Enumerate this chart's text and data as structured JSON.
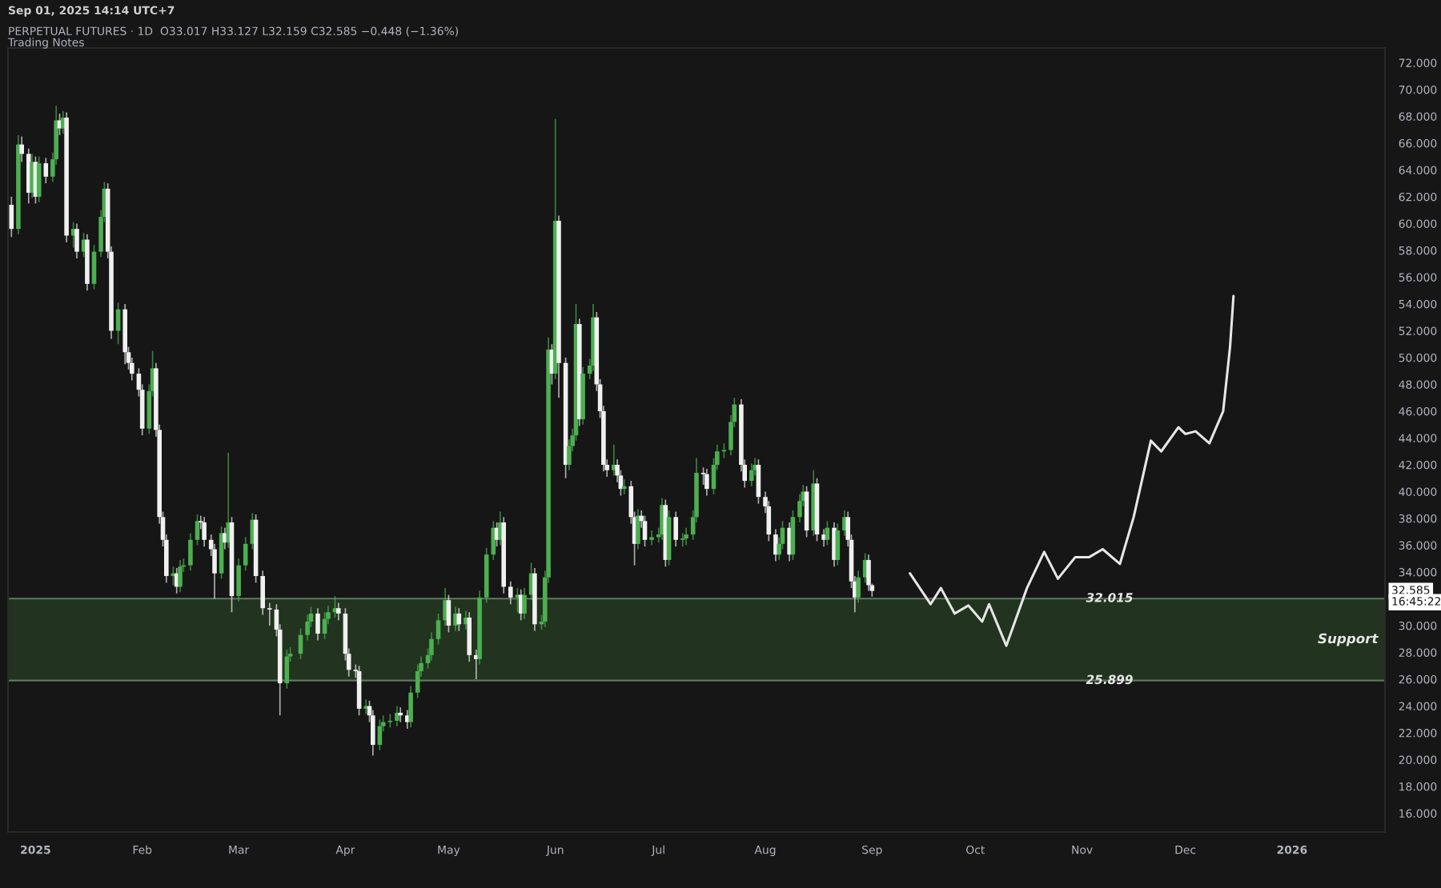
{
  "chart_data": {
    "type": "candlestick",
    "title": "PERPETUAL FUTURES · 1D  O33.017 H33.127 L32.159 C32.585 −0.448 (−1.36%)",
    "subtitle": "Trading Notes",
    "annotations": [
      "Sep 01, 2025 14:14 UTC+7",
      "32.585",
      "16:45:22"
    ],
    "colors": [
      "#f0f0f0",
      "#4caf50",
      "#f0f0f0",
      "#f0f0f0",
      "#4caf50",
      "#f0f0f0",
      "#4caf50",
      "#f0f0f0",
      "#4caf50",
      "#4caf50",
      "#f0f0f0",
      "#4caf50",
      "#f0f0f0",
      "#4caf50",
      "#f0f0f0",
      "#4caf50",
      "#f0f0f0",
      "#4caf50",
      "#4caf50",
      "#4caf50",
      "#f0f0f0",
      "#f0f0f0",
      "#4caf50",
      "#f0f0f0",
      "#f0f0f0",
      "#f0f0f0",
      "#f0f0f0",
      "#f0f0f0",
      "#4caf50",
      "#4caf50",
      "#f0f0f0",
      "#f0f0f0",
      "#f0f0f0",
      "#f0f0f0",
      "#4caf50",
      "#f0f0f0",
      "#4caf50",
      "#4caf50",
      "#4caf50",
      "#4caf50",
      "#f0f0f0",
      "#f0f0f0",
      "#f0f0f0",
      "#f0f0f0",
      "#4caf50",
      "#f0f0f0",
      "#4caf50",
      "#f0f0f0",
      "#4caf50",
      "#4caf50",
      "#4caf50",
      "#f0f0f0",
      "#f0f0f0",
      "#f0f0f0",
      "#f0f0f0",
      "#f0f0f0",
      "#4caf50",
      "#4caf50",
      "#4caf50",
      "#4caf50",
      "#4caf50",
      "#f0f0f0",
      "#4caf50",
      "#4caf50",
      "#4caf50",
      "#f0f0f0",
      "#f0f0f0",
      "#f0f0f0",
      "#f0f0f0",
      "#f0f0f0",
      "#4caf50",
      "#f0f0f0",
      "#f0f0f0",
      "#4caf50",
      "#4caf50",
      "#4caf50",
      "#4caf50",
      "#f0f0f0",
      "#f0f0f0",
      "#4caf50",
      "#4caf50",
      "#4caf50",
      "#4caf50",
      "#4caf50",
      "#4caf50",
      "#4caf50",
      "#f0f0f0",
      "#4caf50",
      "#f0f0f0",
      "#4caf50",
      "#f0f0f0",
      "#f0f0f0",
      "#4caf50",
      "#4caf50",
      "#4caf50",
      "#f0f0f0",
      "#4caf50",
      "#f0f0f0",
      "#f0f0f0",
      "#4caf50",
      "#f0f0f0",
      "#4caf50",
      "#4caf50",
      "#f0f0f0",
      "#4caf50",
      "#4caf50",
      "#4caf50",
      "#f0f0f0",
      "#4caf50",
      "#f0f0f0",
      "#f0f0f0",
      "#4caf50",
      "#4caf50",
      "#4caf50",
      "#f0f0f0",
      "#4caf50",
      "#4caf50",
      "#4caf50",
      "#f0f0f0",
      "#f0f0f0",
      "#f0f0f0",
      "#f0f0f0",
      "#4caf50",
      "#f0f0f0",
      "#f0f0f0",
      "#4caf50",
      "#f0f0f0",
      "#f0f0f0",
      "#4caf50",
      "#f0f0f0",
      "#f0f0f0",
      "#4caf50",
      "#4caf50",
      "#4caf50",
      "#f0f0f0",
      "#4caf50",
      "#f0f0f0",
      "#4caf50",
      "#4caf50",
      "#4caf50",
      "#4caf50",
      "#f0f0f0",
      "#f0f0f0",
      "#4caf50",
      "#4caf50",
      "#4caf50",
      "#4caf50",
      "#4caf50",
      "#f0f0f0",
      "#f0f0f0",
      "#4caf50",
      "#4caf50",
      "#f0f0f0",
      "#f0f0f0",
      "#f0f0f0",
      "#f0f0f0",
      "#4caf50",
      "#4caf50",
      "#f0f0f0",
      "#4caf50",
      "#4caf50",
      "#4caf50",
      "#f0f0f0",
      "#4caf50",
      "#f0f0f0",
      "#f0f0f0",
      "#4caf50",
      "#f0f0f0",
      "#4caf50",
      "#4caf50",
      "#f0f0f0",
      "#f0f0f0",
      "#f0f0f0",
      "#4caf50",
      "#4caf50",
      "#f0f0f0",
      "#f0f0f0"
    ],
    "x": [
      "2024-12-25",
      "2024-12-27",
      "2024-12-28",
      "2024-12-30",
      "2024-12-31",
      "2025-01-01",
      "2025-01-02",
      "2025-01-04",
      "2025-01-06",
      "2025-01-07",
      "2025-01-08",
      "2025-01-09",
      "2025-01-10",
      "2025-01-12",
      "2025-01-13",
      "2025-01-15",
      "2025-01-16",
      "2025-01-18",
      "2025-01-20",
      "2025-01-21",
      "2025-01-22",
      "2025-01-23",
      "2025-01-25",
      "2025-01-27",
      "2025-01-28",
      "2025-01-29",
      "2025-01-31",
      "2025-02-01",
      "2025-02-03",
      "2025-02-04",
      "2025-02-05",
      "2025-02-06",
      "2025-02-07",
      "2025-02-08",
      "2025-02-10",
      "2025-02-11",
      "2025-02-12",
      "2025-02-13",
      "2025-02-15",
      "2025-02-17",
      "2025-02-18",
      "2025-02-19",
      "2025-02-21",
      "2025-02-22",
      "2025-02-24",
      "2025-02-25",
      "2025-02-26",
      "2025-02-27",
      "2025-03-01",
      "2025-03-03",
      "2025-03-05",
      "2025-03-06",
      "2025-03-08",
      "2025-03-10",
      "2025-03-12",
      "2025-03-13",
      "2025-03-15",
      "2025-03-16",
      "2025-03-19",
      "2025-03-21",
      "2025-03-22",
      "2025-03-24",
      "2025-03-26",
      "2025-03-27",
      "2025-03-29",
      "2025-03-30",
      "2025-04-01",
      "2025-04-02",
      "2025-04-04",
      "2025-04-05",
      "2025-04-07",
      "2025-04-08",
      "2025-04-09",
      "2025-04-11",
      "2025-04-12",
      "2025-04-14",
      "2025-04-16",
      "2025-04-17",
      "2025-04-19",
      "2025-04-20",
      "2025-04-22",
      "2025-04-23",
      "2025-04-25",
      "2025-04-26",
      "2025-04-28",
      "2025-04-30",
      "2025-05-01",
      "2025-05-03",
      "2025-05-04",
      "2025-05-06",
      "2025-05-07",
      "2025-05-09",
      "2025-05-10",
      "2025-05-12",
      "2025-05-14",
      "2025-05-15",
      "2025-05-16",
      "2025-05-17",
      "2025-05-19",
      "2025-05-21",
      "2025-05-22",
      "2025-05-23",
      "2025-05-25",
      "2025-05-26",
      "2025-05-28",
      "2025-05-29",
      "2025-05-30",
      "2025-05-31",
      "2025-06-01",
      "2025-06-02",
      "2025-06-04",
      "2025-06-05",
      "2025-06-06",
      "2025-06-07",
      "2025-06-08",
      "2025-06-09",
      "2025-06-11",
      "2025-06-12",
      "2025-06-13",
      "2025-06-14",
      "2025-06-15",
      "2025-06-16",
      "2025-06-18",
      "2025-06-19",
      "2025-06-20",
      "2025-06-21",
      "2025-06-23",
      "2025-06-24",
      "2025-06-25",
      "2025-06-26",
      "2025-06-27",
      "2025-06-29",
      "2025-07-01",
      "2025-07-02",
      "2025-07-03",
      "2025-07-04",
      "2025-07-06",
      "2025-07-08",
      "2025-07-09",
      "2025-07-11",
      "2025-07-12",
      "2025-07-14",
      "2025-07-15",
      "2025-07-17",
      "2025-07-18",
      "2025-07-20",
      "2025-07-22",
      "2025-07-23",
      "2025-07-25",
      "2025-07-26",
      "2025-07-28",
      "2025-07-29",
      "2025-07-30",
      "2025-08-01",
      "2025-08-02",
      "2025-08-04",
      "2025-08-05",
      "2025-08-06",
      "2025-08-08",
      "2025-08-09",
      "2025-08-11",
      "2025-08-12",
      "2025-08-13",
      "2025-08-15",
      "2025-08-16",
      "2025-08-18",
      "2025-08-19",
      "2025-08-21",
      "2025-08-22",
      "2025-08-24",
      "2025-08-25",
      "2025-08-26",
      "2025-08-27",
      "2025-08-28",
      "2025-08-30",
      "2025-08-31",
      "2025-09-01"
    ],
    "ohlc": [
      [
        61.4,
        62.0,
        59.0,
        59.6
      ],
      [
        59.6,
        66.6,
        59.2,
        65.9
      ],
      [
        65.9,
        66.5,
        64.6,
        65.2
      ],
      [
        65.2,
        65.6,
        61.5,
        62.3
      ],
      [
        62.3,
        65.2,
        61.9,
        64.6
      ],
      [
        64.6,
        65.0,
        61.5,
        62.0
      ],
      [
        62.0,
        65.0,
        61.6,
        64.5
      ],
      [
        64.5,
        64.9,
        63.0,
        63.5
      ],
      [
        63.5,
        65.3,
        63.1,
        64.8
      ],
      [
        64.8,
        68.8,
        64.4,
        67.7
      ],
      [
        67.7,
        68.2,
        66.6,
        67.1
      ],
      [
        67.1,
        68.4,
        66.7,
        67.9
      ],
      [
        67.9,
        68.3,
        58.6,
        59.1
      ],
      [
        59.1,
        60.1,
        58.2,
        59.6
      ],
      [
        59.6,
        60.0,
        57.4,
        57.9
      ],
      [
        57.9,
        59.3,
        57.5,
        58.8
      ],
      [
        58.8,
        59.2,
        55.0,
        55.5
      ],
      [
        55.5,
        58.4,
        55.1,
        57.9
      ],
      [
        57.9,
        61.0,
        57.5,
        60.5
      ],
      [
        60.5,
        63.1,
        60.1,
        62.6
      ],
      [
        62.6,
        63.0,
        57.4,
        57.9
      ],
      [
        57.9,
        58.3,
        51.4,
        52.0
      ],
      [
        52.0,
        54.1,
        51.0,
        53.6
      ],
      [
        53.6,
        54.0,
        49.5,
        50.4
      ],
      [
        50.4,
        50.8,
        49.1,
        49.6
      ],
      [
        49.6,
        50.0,
        48.3,
        48.8
      ],
      [
        48.8,
        49.2,
        47.1,
        47.6
      ],
      [
        47.6,
        48.0,
        44.2,
        44.7
      ],
      [
        44.7,
        48.0,
        44.3,
        47.5
      ],
      [
        47.5,
        50.5,
        47.1,
        49.2
      ],
      [
        49.2,
        49.6,
        44.1,
        44.6
      ],
      [
        44.6,
        45.0,
        37.6,
        38.1
      ],
      [
        38.1,
        38.5,
        35.9,
        36.4
      ],
      [
        36.4,
        36.8,
        33.2,
        33.7
      ],
      [
        33.7,
        34.4,
        33.0,
        33.9
      ],
      [
        33.9,
        34.3,
        32.4,
        32.9
      ],
      [
        32.9,
        34.9,
        32.5,
        34.4
      ],
      [
        34.4,
        35.0,
        34.0,
        34.5
      ],
      [
        34.5,
        36.9,
        34.1,
        36.4
      ],
      [
        36.4,
        38.3,
        36.0,
        37.8
      ],
      [
        37.8,
        38.2,
        37.2,
        37.7
      ],
      [
        37.7,
        38.1,
        35.9,
        36.4
      ],
      [
        36.4,
        36.8,
        35.2,
        35.7
      ],
      [
        35.7,
        36.1,
        32.0,
        33.9
      ],
      [
        33.9,
        37.4,
        33.5,
        36.9
      ],
      [
        36.9,
        37.3,
        35.7,
        36.2
      ],
      [
        36.2,
        42.9,
        35.8,
        37.7
      ],
      [
        37.7,
        38.1,
        31.0,
        32.2
      ],
      [
        32.2,
        35.0,
        31.8,
        34.5
      ],
      [
        34.5,
        36.6,
        34.1,
        36.1
      ],
      [
        36.1,
        38.4,
        35.7,
        37.9
      ],
      [
        37.9,
        38.3,
        33.2,
        33.7
      ],
      [
        33.7,
        34.1,
        30.8,
        31.3
      ],
      [
        31.3,
        31.7,
        30.0,
        31.2
      ],
      [
        31.2,
        31.6,
        29.2,
        29.7
      ],
      [
        29.7,
        30.1,
        23.3,
        25.7
      ],
      [
        25.7,
        28.2,
        25.3,
        27.7
      ],
      [
        27.7,
        28.4,
        27.3,
        27.9
      ],
      [
        27.9,
        29.8,
        27.5,
        29.3
      ],
      [
        29.3,
        30.8,
        28.9,
        30.3
      ],
      [
        30.3,
        31.4,
        29.9,
        30.9
      ],
      [
        30.9,
        31.3,
        28.9,
        29.4
      ],
      [
        29.4,
        31.0,
        29.0,
        30.5
      ],
      [
        30.5,
        31.5,
        30.1,
        31.0
      ],
      [
        31.0,
        32.2,
        30.6,
        31.3
      ],
      [
        31.3,
        31.7,
        30.4,
        30.9
      ],
      [
        30.9,
        31.3,
        27.4,
        27.9
      ],
      [
        27.9,
        28.3,
        26.2,
        26.7
      ],
      [
        26.7,
        27.1,
        26.1,
        26.6
      ],
      [
        26.6,
        27.0,
        23.3,
        23.8
      ],
      [
        23.8,
        24.5,
        23.4,
        24.0
      ],
      [
        24.0,
        24.4,
        22.8,
        23.3
      ],
      [
        23.3,
        23.7,
        20.3,
        21.1
      ],
      [
        21.1,
        23.0,
        20.7,
        22.5
      ],
      [
        22.5,
        23.3,
        22.1,
        22.8
      ],
      [
        22.8,
        23.4,
        22.4,
        22.9
      ],
      [
        22.9,
        24.0,
        22.5,
        23.5
      ],
      [
        23.5,
        23.9,
        22.8,
        23.3
      ],
      [
        23.3,
        23.7,
        22.3,
        22.8
      ],
      [
        22.8,
        25.5,
        22.4,
        25.0
      ],
      [
        25.0,
        27.1,
        24.6,
        26.6
      ],
      [
        26.6,
        27.7,
        26.2,
        27.2
      ],
      [
        27.2,
        28.3,
        26.8,
        27.8
      ],
      [
        27.8,
        29.5,
        27.4,
        29.0
      ],
      [
        29.0,
        30.9,
        28.6,
        30.4
      ],
      [
        30.4,
        32.8,
        30.0,
        31.9
      ],
      [
        31.9,
        32.3,
        29.5,
        30.0
      ],
      [
        30.0,
        31.4,
        29.6,
        30.9
      ],
      [
        30.9,
        31.3,
        29.6,
        30.1
      ],
      [
        30.1,
        31.1,
        29.7,
        30.6
      ],
      [
        30.6,
        31.0,
        27.3,
        27.8
      ],
      [
        27.8,
        28.2,
        26.0,
        27.5
      ],
      [
        27.5,
        32.6,
        27.1,
        32.1
      ],
      [
        32.1,
        35.8,
        31.7,
        35.3
      ],
      [
        35.3,
        37.8,
        34.9,
        37.3
      ],
      [
        37.3,
        37.7,
        35.9,
        36.4
      ],
      [
        36.4,
        38.5,
        36.0,
        37.7
      ],
      [
        37.7,
        38.1,
        32.4,
        32.9
      ],
      [
        32.9,
        33.3,
        31.6,
        32.1
      ],
      [
        32.1,
        32.8,
        31.0,
        32.3
      ],
      [
        32.3,
        32.7,
        30.4,
        30.9
      ],
      [
        30.9,
        32.8,
        30.5,
        32.3
      ],
      [
        32.3,
        34.7,
        31.9,
        33.9
      ],
      [
        33.9,
        34.3,
        29.6,
        30.1
      ],
      [
        30.1,
        30.8,
        29.7,
        30.3
      ],
      [
        30.3,
        34.1,
        29.9,
        33.6
      ],
      [
        33.6,
        51.5,
        33.2,
        50.6
      ],
      [
        50.6,
        51.0,
        48.0,
        48.8
      ],
      [
        48.8,
        67.8,
        48.4,
        60.2
      ],
      [
        60.2,
        60.6,
        47.0,
        49.6
      ],
      [
        49.6,
        50.0,
        41.0,
        42.0
      ],
      [
        42.0,
        43.9,
        41.6,
        43.4
      ],
      [
        43.4,
        44.7,
        43.0,
        44.2
      ],
      [
        44.2,
        54.0,
        43.8,
        52.5
      ],
      [
        52.5,
        52.9,
        44.9,
        45.4
      ],
      [
        45.4,
        49.3,
        45.0,
        48.8
      ],
      [
        48.8,
        49.9,
        48.4,
        49.4
      ],
      [
        49.4,
        54.0,
        49.0,
        53.0
      ],
      [
        53.0,
        53.4,
        47.5,
        48.0
      ],
      [
        48.0,
        48.4,
        45.5,
        46.0
      ],
      [
        46.0,
        46.4,
        41.5,
        42.0
      ],
      [
        42.0,
        42.4,
        41.1,
        41.6
      ],
      [
        41.6,
        43.5,
        41.2,
        42.0
      ],
      [
        42.0,
        42.4,
        40.7,
        41.2
      ],
      [
        41.2,
        41.6,
        39.7,
        40.2
      ],
      [
        40.2,
        40.9,
        39.8,
        40.4
      ],
      [
        40.4,
        40.8,
        37.6,
        38.1
      ],
      [
        38.1,
        38.5,
        34.5,
        36.1
      ],
      [
        36.1,
        38.7,
        35.7,
        38.2
      ],
      [
        38.2,
        38.6,
        37.3,
        37.8
      ],
      [
        37.8,
        38.2,
        35.9,
        36.4
      ],
      [
        36.4,
        37.1,
        36.0,
        36.6
      ],
      [
        36.6,
        37.3,
        36.2,
        36.8
      ],
      [
        36.8,
        39.5,
        36.4,
        39.0
      ],
      [
        39.0,
        39.4,
        34.4,
        34.9
      ],
      [
        34.9,
        38.6,
        34.5,
        38.1
      ],
      [
        38.1,
        38.5,
        35.9,
        36.4
      ],
      [
        36.4,
        36.9,
        35.9,
        36.5
      ],
      [
        36.5,
        37.3,
        36.0,
        36.8
      ],
      [
        36.8,
        38.6,
        36.4,
        38.1
      ],
      [
        38.1,
        42.5,
        37.7,
        41.4
      ],
      [
        41.4,
        41.8,
        40.5,
        41.3
      ],
      [
        41.3,
        41.7,
        39.7,
        40.2
      ],
      [
        40.2,
        42.5,
        39.8,
        42.0
      ],
      [
        42.0,
        43.5,
        41.6,
        43.0
      ],
      [
        43.0,
        43.6,
        42.5,
        43.1
      ],
      [
        43.1,
        45.7,
        42.7,
        45.2
      ],
      [
        45.2,
        47.0,
        44.8,
        46.5
      ],
      [
        46.5,
        46.9,
        41.5,
        42.0
      ],
      [
        42.0,
        42.4,
        40.3,
        40.8
      ],
      [
        40.8,
        42.1,
        40.4,
        41.6
      ],
      [
        41.6,
        42.5,
        41.2,
        42.0
      ],
      [
        42.0,
        42.4,
        39.1,
        39.6
      ],
      [
        39.6,
        40.0,
        38.4,
        38.9
      ],
      [
        38.9,
        39.3,
        36.3,
        36.8
      ],
      [
        36.8,
        37.2,
        34.8,
        35.3
      ],
      [
        35.3,
        36.6,
        34.9,
        36.1
      ],
      [
        36.1,
        37.8,
        35.7,
        37.3
      ],
      [
        37.3,
        37.7,
        34.8,
        35.3
      ],
      [
        35.3,
        38.6,
        34.9,
        38.1
      ],
      [
        38.1,
        39.8,
        37.7,
        39.3
      ],
      [
        39.3,
        40.5,
        38.9,
        40.0
      ],
      [
        40.0,
        40.4,
        36.6,
        37.1
      ],
      [
        37.1,
        41.6,
        36.7,
        40.6
      ],
      [
        40.6,
        41.0,
        36.3,
        36.8
      ],
      [
        36.8,
        37.2,
        35.9,
        36.4
      ],
      [
        36.4,
        37.8,
        36.0,
        37.3
      ],
      [
        37.3,
        37.7,
        34.4,
        34.9
      ],
      [
        34.9,
        37.6,
        34.5,
        37.1
      ],
      [
        37.1,
        38.6,
        36.7,
        38.1
      ],
      [
        38.1,
        38.5,
        35.9,
        36.4
      ],
      [
        36.4,
        36.8,
        32.8,
        33.3
      ],
      [
        33.3,
        33.7,
        31.0,
        32.1
      ],
      [
        32.1,
        34.1,
        31.7,
        33.6
      ],
      [
        33.6,
        35.4,
        33.2,
        34.9
      ],
      [
        34.9,
        35.3,
        32.6,
        33.017
      ],
      [
        33.017,
        33.127,
        32.159,
        32.585
      ]
    ],
    "series": [
      {
        "type": "line",
        "color": "#e6e6e6",
        "x": [
          "2025-09-12",
          "2025-09-18",
          "2025-09-21",
          "2025-09-25",
          "2025-09-29",
          "2025-10-03",
          "2025-10-05",
          "2025-10-10",
          "2025-10-16",
          "2025-10-21",
          "2025-10-25",
          "2025-10-30",
          "2025-11-03",
          "2025-11-07",
          "2025-11-12",
          "2025-11-16",
          "2025-11-21",
          "2025-11-24",
          "2025-11-29",
          "2025-12-01",
          "2025-12-04",
          "2025-12-08",
          "2025-12-12",
          "2025-12-14",
          "2025-12-15"
        ],
        "values": [
          33.9,
          31.6,
          32.8,
          30.9,
          31.5,
          30.3,
          31.6,
          28.5,
          32.8,
          35.5,
          33.5,
          35.1,
          35.1,
          35.7,
          34.6,
          38.1,
          43.8,
          43.0,
          44.8,
          44.3,
          44.5,
          43.6,
          46.0,
          50.8,
          54.6
        ]
      }
    ],
    "bands": [
      {
        "axis": "y",
        "from": 25.899,
        "to": 32.015,
        "label": "Support",
        "color": "#22331f"
      }
    ],
    "ref_lines": [
      {
        "axis": "y",
        "value": 32.015,
        "label": "32.015",
        "color": "#5f7a5c"
      },
      {
        "axis": "y",
        "value": 25.899,
        "label": "25.899",
        "color": "#5f7a5c"
      }
    ],
    "xlim": [
      "2024-12-24",
      "2026-01-28"
    ],
    "xticks": [
      {
        "value": "2025-01-01",
        "label": "2025"
      },
      {
        "value": "2025-02-01",
        "label": "Feb"
      },
      {
        "value": "2025-03-01",
        "label": "Mar"
      },
      {
        "value": "2025-04-01",
        "label": "Apr"
      },
      {
        "value": "2025-05-01",
        "label": "May"
      },
      {
        "value": "2025-06-01",
        "label": "Jun"
      },
      {
        "value": "2025-07-01",
        "label": "Jul"
      },
      {
        "value": "2025-08-01",
        "label": "Aug"
      },
      {
        "value": "2025-09-01",
        "label": "Sep"
      },
      {
        "value": "2025-10-01",
        "label": "Oct"
      },
      {
        "value": "2025-11-01",
        "label": "Nov"
      },
      {
        "value": "2025-12-01",
        "label": "Dec"
      },
      {
        "value": "2026-01-01",
        "label": "2026"
      }
    ],
    "ylim": [
      14.6,
      73.1
    ],
    "yticks": [
      {
        "value": 16,
        "label": "16.000"
      },
      {
        "value": 18,
        "label": "18.000"
      },
      {
        "value": 20,
        "label": "20.000"
      },
      {
        "value": 22,
        "label": "22.000"
      },
      {
        "value": 24,
        "label": "24.000"
      },
      {
        "value": 26,
        "label": "26.000"
      },
      {
        "value": 28,
        "label": "28.000"
      },
      {
        "value": 30,
        "label": "30.000"
      },
      {
        "value": 32,
        "label": null
      },
      {
        "value": 34,
        "label": "34.000"
      },
      {
        "value": 36,
        "label": "36.000"
      },
      {
        "value": 38,
        "label": "38.000"
      },
      {
        "value": 40,
        "label": "40.000"
      },
      {
        "value": 42,
        "label": "42.000"
      },
      {
        "value": 44,
        "label": "44.000"
      },
      {
        "value": 46,
        "label": "46.000"
      },
      {
        "value": 48,
        "label": "48.000"
      },
      {
        "value": 50,
        "label": "50.000"
      },
      {
        "value": 52,
        "label": "52.000"
      },
      {
        "value": 54,
        "label": "54.000"
      },
      {
        "value": 56,
        "label": "56.000"
      },
      {
        "value": 58,
        "label": "58.000"
      },
      {
        "value": 60,
        "label": "60.000"
      },
      {
        "value": 62,
        "label": "62.000"
      },
      {
        "value": 64,
        "label": "64.000"
      },
      {
        "value": 66,
        "label": "66.000"
      },
      {
        "value": 68,
        "label": "68.000"
      },
      {
        "value": 70,
        "label": "70.000"
      },
      {
        "value": 72,
        "label": "72.000"
      }
    ]
  }
}
